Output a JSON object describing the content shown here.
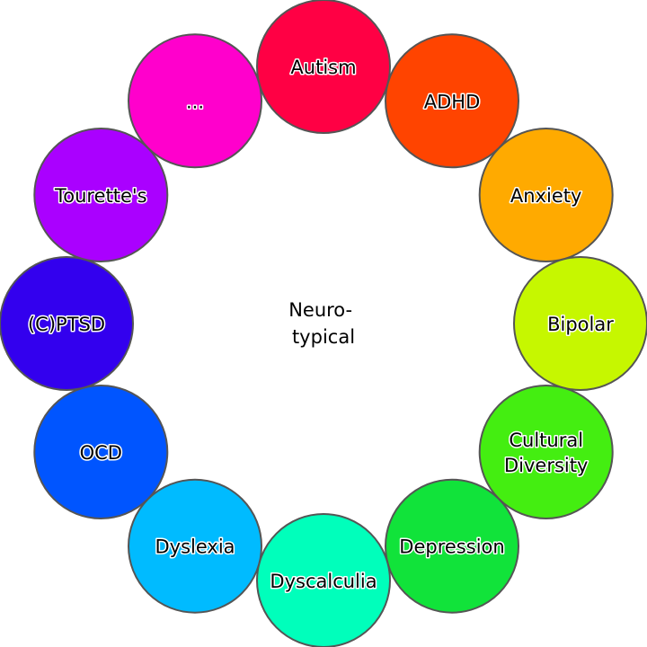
{
  "center": {
    "line1": "Neuro-",
    "line2": "typical"
  },
  "ring": [
    {
      "id": "autism",
      "lines": [
        "Autism"
      ],
      "color": "#ff0044"
    },
    {
      "id": "adhd",
      "lines": [
        "ADHD"
      ],
      "color": "#ff4400"
    },
    {
      "id": "anxiety",
      "lines": [
        "Anxiety"
      ],
      "color": "#ffaa00"
    },
    {
      "id": "bipolar",
      "lines": [
        "Bipolar"
      ],
      "color": "#c6f700"
    },
    {
      "id": "cultural-diversity",
      "lines": [
        "Cultural",
        "Diversity"
      ],
      "color": "#44ee11"
    },
    {
      "id": "depression",
      "lines": [
        "Depression"
      ],
      "color": "#11e33a"
    },
    {
      "id": "dyscalculia",
      "lines": [
        "Dyscalculia"
      ],
      "color": "#00ffbb"
    },
    {
      "id": "dyslexia",
      "lines": [
        "Dyslexia"
      ],
      "color": "#00bbff"
    },
    {
      "id": "ocd",
      "lines": [
        "OCD"
      ],
      "color": "#0055ff"
    },
    {
      "id": "c-ptsd",
      "lines": [
        "(C)PTSD"
      ],
      "color": "#3300ee"
    },
    {
      "id": "tourettes",
      "lines": [
        "Tourette's"
      ],
      "color": "#aa00ff"
    },
    {
      "id": "more",
      "lines": [
        "..."
      ],
      "color": "#ff00cc"
    }
  ],
  "style": {
    "outline": "#555555"
  }
}
